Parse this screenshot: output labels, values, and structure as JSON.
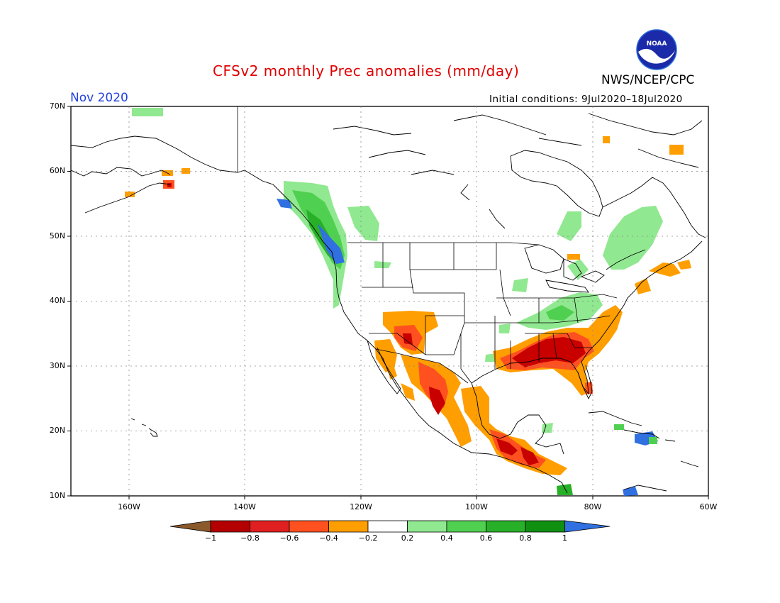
{
  "header": {
    "title": "CFSv2 monthly Prec anomalies (mm/day)",
    "month": "Nov 2020",
    "initial_conditions": "Initial conditions: 9Jul2020–18Jul2020",
    "agency": "NWS/NCEP/CPC",
    "logo_text": "NOAA"
  },
  "map": {
    "latitude_labels": [
      "70N",
      "60N",
      "50N",
      "40N",
      "30N",
      "20N",
      "10N"
    ],
    "longitude_labels": [
      "160W",
      "140W",
      "120W",
      "100W",
      "80W",
      "60W"
    ],
    "lat_range": [
      10,
      70
    ],
    "lon_range": [
      -170,
      -60
    ]
  },
  "colorbar": {
    "labels": [
      "−1",
      "−0.8",
      "−0.6",
      "−0.4",
      "−0.2",
      "0.2",
      "0.4",
      "0.6",
      "0.8",
      "1"
    ],
    "colors": [
      "#8b5a2b",
      "#b40000",
      "#e02020",
      "#ff5020",
      "#ff9e00",
      "#ffffff",
      "#90e890",
      "#50d050",
      "#28b028",
      "#109010",
      "#3070e0"
    ]
  },
  "anomaly_regions": [
    {
      "name": "southeast-us-dry",
      "level": "-0.8",
      "color": "#c80000"
    },
    {
      "name": "southwest-us-dry",
      "level": "-0.4",
      "color": "#ff9e00"
    },
    {
      "name": "western-mexico-dry",
      "level": "-0.6",
      "color": "#ff5020"
    },
    {
      "name": "southern-mexico-dry",
      "level": "-0.8",
      "color": "#c80000"
    },
    {
      "name": "pacific-northwest-wet",
      "level": "1",
      "color": "#3070e0"
    },
    {
      "name": "british-columbia-wet",
      "level": "0.6",
      "color": "#50d050"
    },
    {
      "name": "quebec-wet",
      "level": "0.4",
      "color": "#90e890"
    },
    {
      "name": "ohio-valley-wet",
      "level": "0.4",
      "color": "#90e890"
    },
    {
      "name": "hispaniola-wet",
      "level": "1",
      "color": "#3070e0"
    }
  ]
}
